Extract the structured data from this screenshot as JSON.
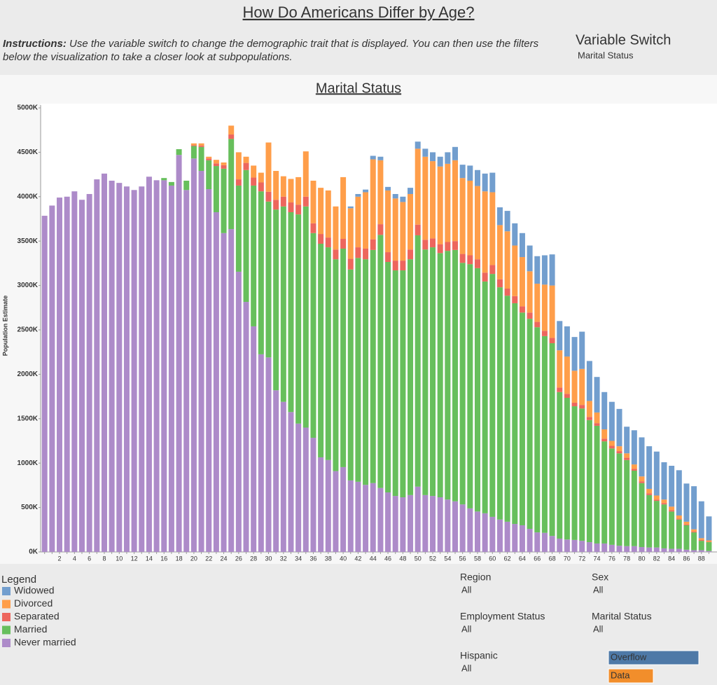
{
  "header": {
    "title": "How Do Americans Differ by Age?",
    "instructions_label": "Instructions:",
    "instructions_text": "Use the variable switch to change the demographic trait that is displayed. You can then use the filters below the visualization to take a closer look at subpopulations.",
    "switch_label": "Variable Switch",
    "switch_value": "Marital Status"
  },
  "chart_data": {
    "type": "stacked-bar",
    "title": "Marital Status",
    "y_label": "Population Estimate",
    "categories": [
      null,
      null,
      "2",
      null,
      "4",
      null,
      "6",
      null,
      "8",
      null,
      "10",
      null,
      "12",
      null,
      "14",
      null,
      "16",
      null,
      "18",
      null,
      "20",
      null,
      "22",
      null,
      "24",
      null,
      "26",
      null,
      "28",
      null,
      "30",
      null,
      "32",
      null,
      "34",
      null,
      "36",
      null,
      "38",
      null,
      "40",
      null,
      "42",
      null,
      "44",
      null,
      "46",
      null,
      "48",
      null,
      "50",
      null,
      "52",
      null,
      "54",
      null,
      "56",
      null,
      "58",
      null,
      "60",
      null,
      "62",
      null,
      "64",
      null,
      "66",
      null,
      "68",
      null,
      "70",
      null,
      "72",
      null,
      "74",
      null,
      "76",
      null,
      "78",
      null,
      "80",
      null,
      "82",
      null,
      "84",
      null,
      "86",
      null,
      "88",
      null
    ],
    "series": [
      {
        "name": "Widowed",
        "color": "#729ece",
        "values": [
          0,
          0,
          0,
          0,
          0,
          0,
          0,
          0,
          0,
          0,
          0,
          0,
          0,
          0,
          0,
          0,
          0,
          0,
          0,
          0,
          0,
          0,
          0,
          0,
          0,
          0,
          0,
          0,
          0,
          0,
          0,
          0,
          0,
          0,
          0,
          0,
          0,
          0,
          0,
          0,
          0,
          20,
          30,
          30,
          40,
          40,
          40,
          50,
          60,
          70,
          80,
          90,
          100,
          110,
          130,
          150,
          150,
          170,
          180,
          200,
          220,
          200,
          230,
          250,
          270,
          290,
          310,
          330,
          350,
          330,
          340,
          380,
          420,
          450,
          400,
          420,
          440,
          420,
          300,
          385,
          440,
          480,
          495,
          420,
          460,
          510,
          430,
          485,
          415,
          270
        ]
      },
      {
        "name": "Divorced",
        "color": "#ff9e4a",
        "values": [
          0,
          0,
          0,
          0,
          0,
          0,
          0,
          0,
          0,
          0,
          0,
          0,
          0,
          0,
          0,
          0,
          0,
          0,
          0,
          0,
          20,
          25,
          20,
          40,
          30,
          100,
          305,
          70,
          135,
          110,
          555,
          325,
          230,
          265,
          310,
          510,
          480,
          520,
          530,
          485,
          695,
          570,
          570,
          635,
          900,
          720,
          695,
          700,
          660,
          625,
          855,
          935,
          870,
          875,
          880,
          910,
          855,
          840,
          825,
          915,
          820,
          610,
          645,
          570,
          555,
          465,
          430,
          520,
          590,
          420,
          420,
          360,
          405,
          180,
          120,
          105,
          55,
          55,
          50,
          50,
          55,
          50,
          45,
          40,
          40,
          35,
          30,
          25,
          20,
          15
        ]
      },
      {
        "name": "Separated",
        "color": "#ed665d",
        "values": [
          0,
          0,
          0,
          0,
          0,
          0,
          0,
          0,
          0,
          0,
          0,
          0,
          0,
          0,
          0,
          0,
          0,
          0,
          0,
          0,
          10,
          15,
          20,
          30,
          40,
          50,
          70,
          80,
          90,
          100,
          110,
          110,
          110,
          110,
          110,
          110,
          110,
          110,
          110,
          110,
          110,
          120,
          120,
          120,
          120,
          120,
          110,
          110,
          110,
          110,
          120,
          110,
          100,
          100,
          100,
          100,
          100,
          100,
          100,
          100,
          100,
          90,
          80,
          80,
          70,
          70,
          60,
          60,
          60,
          50,
          45,
          40,
          40,
          35,
          30,
          30,
          30,
          25,
          25,
          20,
          20,
          20,
          15,
          15,
          15,
          10,
          10,
          10,
          10,
          5
        ]
      },
      {
        "name": "Married",
        "color": "#67bf5c",
        "values": [
          0,
          0,
          0,
          0,
          0,
          0,
          0,
          0,
          0,
          0,
          0,
          0,
          0,
          0,
          0,
          0,
          25,
          40,
          65,
          105,
          140,
          270,
          325,
          520,
          725,
          1015,
          970,
          1485,
          1585,
          1835,
          1755,
          2035,
          2200,
          2250,
          2355,
          2490,
          2305,
          2405,
          2395,
          2385,
          2460,
          2375,
          2520,
          2540,
          2625,
          2850,
          2595,
          2540,
          2555,
          2655,
          2830,
          2765,
          2800,
          2750,
          2800,
          2830,
          2720,
          2750,
          2740,
          2610,
          2735,
          2615,
          2545,
          2485,
          2395,
          2365,
          2310,
          2215,
          2170,
          1650,
          1595,
          1505,
          1490,
          1375,
          1325,
          1150,
          1085,
          1040,
          970,
          850,
          720,
          590,
          525,
          495,
          420,
          330,
          275,
          200,
          105,
          100
        ]
      },
      {
        "name": "Never married",
        "color": "#ad8bc9",
        "values": [
          3785,
          3900,
          3990,
          4000,
          4060,
          3965,
          4030,
          4195,
          4260,
          4180,
          4155,
          4115,
          4075,
          4115,
          4225,
          4185,
          4185,
          4125,
          4470,
          4075,
          4430,
          4290,
          4085,
          3825,
          3590,
          3635,
          3155,
          2815,
          2540,
          2225,
          2190,
          1820,
          1690,
          1575,
          1445,
          1400,
          1285,
          1065,
          1035,
          910,
          955,
          805,
          790,
          755,
          775,
          720,
          670,
          630,
          615,
          640,
          735,
          640,
          630,
          615,
          590,
          570,
          535,
          490,
          455,
          435,
          395,
          365,
          340,
          315,
          300,
          260,
          220,
          215,
          180,
          150,
          140,
          135,
          125,
          110,
          95,
          95,
          80,
          70,
          65,
          65,
          55,
          50,
          50,
          40,
          35,
          35,
          25,
          20,
          20,
          10
        ]
      }
    ],
    "ylim": [
      0,
      5000
    ],
    "yticks": [
      {
        "value": 0,
        "label": "0K"
      },
      {
        "value": 500,
        "label": "500K"
      },
      {
        "value": 1000,
        "label": "1000K"
      },
      {
        "value": 1500,
        "label": "1500K"
      },
      {
        "value": 2000,
        "label": "2000K"
      },
      {
        "value": 2500,
        "label": "2500K"
      },
      {
        "value": 3000,
        "label": "3000K"
      },
      {
        "value": 3500,
        "label": "3500K"
      },
      {
        "value": 4000,
        "label": "4000K"
      },
      {
        "value": 4500,
        "label": "4500K"
      },
      {
        "value": 5000,
        "label": "5000K"
      }
    ],
    "legend_title": "Legend"
  },
  "filters": [
    {
      "label": "Region",
      "value": "All"
    },
    {
      "label": "Sex",
      "value": "All"
    },
    {
      "label": "Employment Status",
      "value": "All"
    },
    {
      "label": "Marital Status",
      "value": "All"
    },
    {
      "label": "Hispanic",
      "value": "All"
    }
  ],
  "buttons": [
    "Overflow",
    "Data"
  ]
}
